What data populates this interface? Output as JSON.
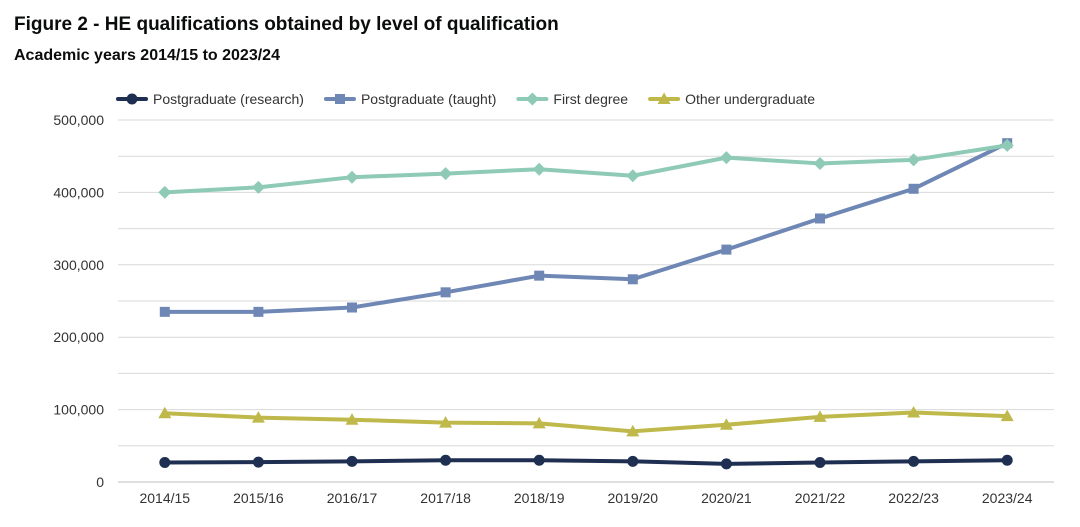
{
  "figure": {
    "title": "Figure 2 - HE qualifications obtained by level of qualification",
    "subtitle": "Academic years 2014/15 to 2023/24"
  },
  "chart_data": {
    "type": "line",
    "title": "Figure 2 - HE qualifications obtained by level of qualification",
    "subtitle": "Academic years 2014/15 to 2023/24",
    "xlabel": "",
    "ylabel": "",
    "ylim": [
      0,
      500000
    ],
    "yticks": [
      0,
      100000,
      200000,
      300000,
      400000,
      500000
    ],
    "ytick_labels": [
      "0",
      "100,000",
      "200,000",
      "300,000",
      "400,000",
      "500,000"
    ],
    "grid": true,
    "legend_position": "top-left",
    "categories": [
      "2014/15",
      "2015/16",
      "2016/17",
      "2017/18",
      "2018/19",
      "2019/20",
      "2020/21",
      "2021/22",
      "2022/23",
      "2023/24"
    ],
    "series": [
      {
        "name": "Postgraduate (research)",
        "color": "#1f2f52",
        "marker": "circle",
        "values": [
          27000,
          27500,
          28500,
          30000,
          30000,
          28500,
          25000,
          27000,
          28500,
          30000
        ]
      },
      {
        "name": "Postgraduate (taught)",
        "color": "#6f87b5",
        "marker": "square",
        "values": [
          235000,
          235000,
          241000,
          262000,
          285000,
          280000,
          321000,
          364000,
          405000,
          468000
        ]
      },
      {
        "name": "First degree",
        "color": "#8ecab5",
        "marker": "diamond",
        "values": [
          400000,
          407000,
          421000,
          426000,
          432000,
          423000,
          448000,
          440000,
          445000,
          465000
        ]
      },
      {
        "name": "Other undergraduate",
        "color": "#bfb84a",
        "marker": "triangle",
        "values": [
          95000,
          89000,
          86000,
          82000,
          81000,
          70000,
          79000,
          90000,
          96000,
          91000
        ]
      }
    ]
  }
}
